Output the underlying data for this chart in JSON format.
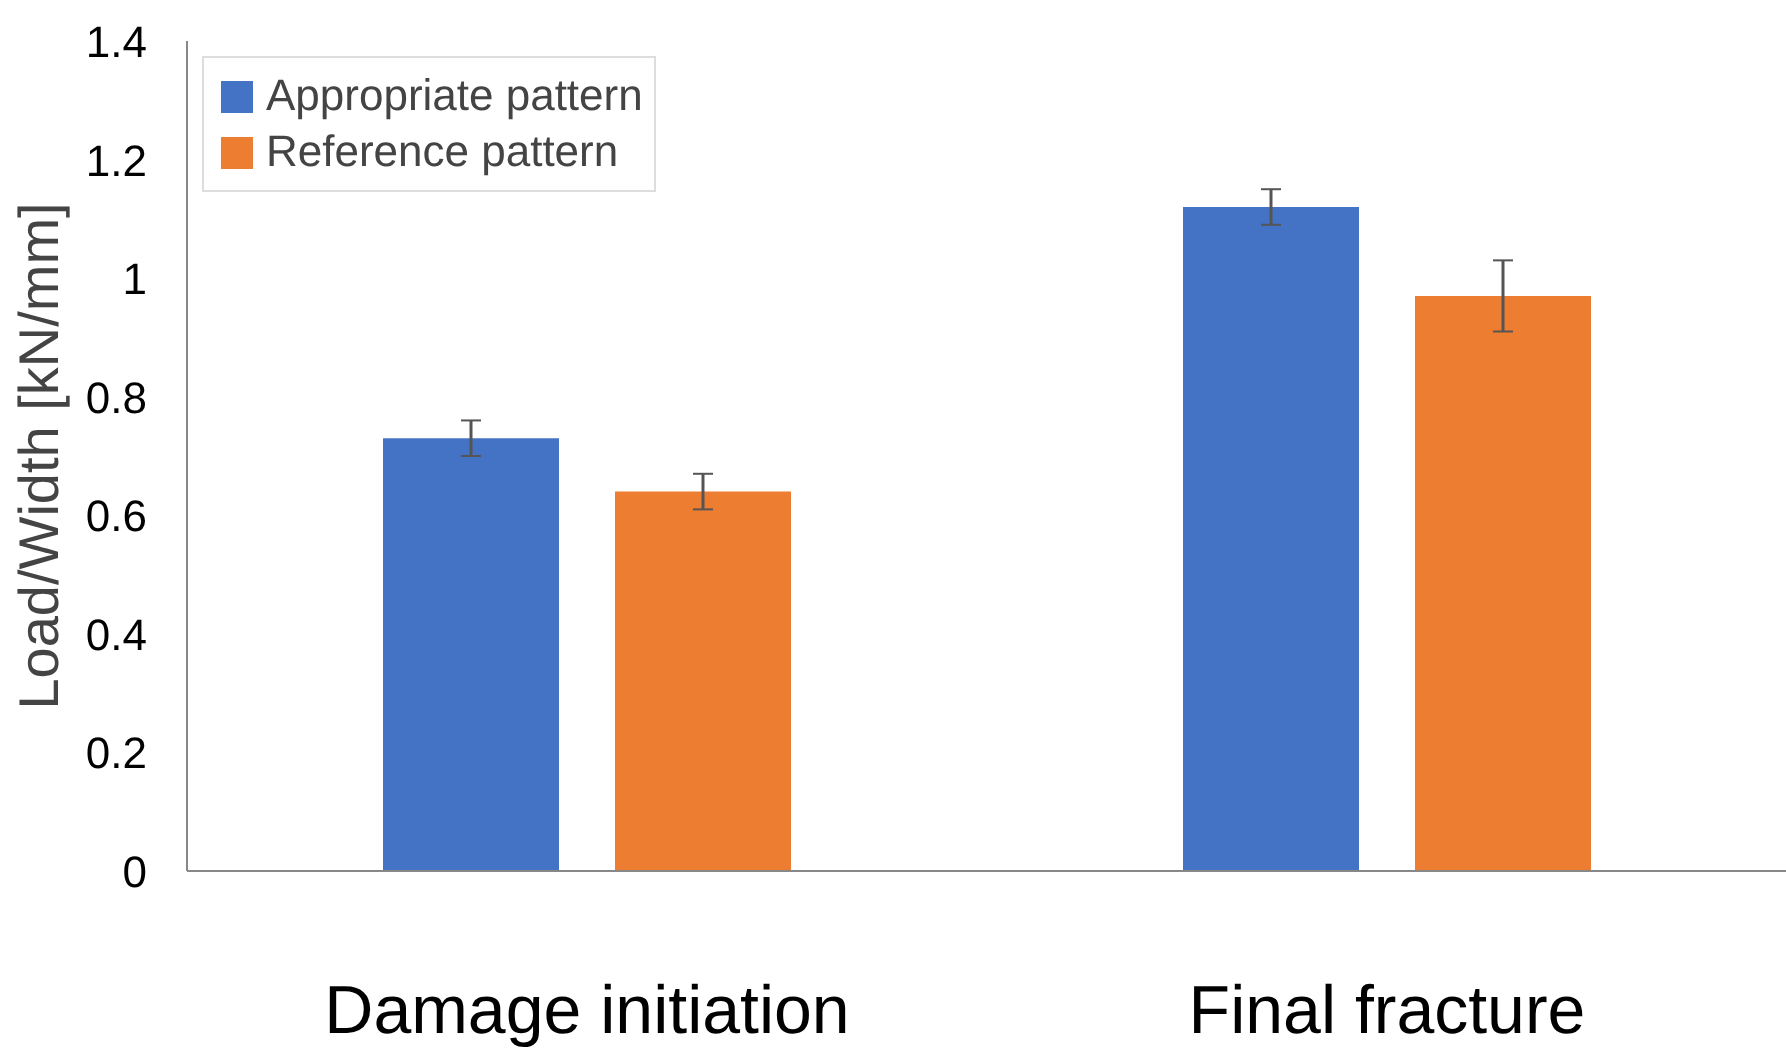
{
  "chart_data": {
    "type": "bar",
    "ylabel": "Load/Width [kN/mm]",
    "categories": [
      "Damage initiation",
      "Final fracture"
    ],
    "series": [
      {
        "name": "Appropriate pattern",
        "color": "#4472c4",
        "values": [
          0.73,
          1.12
        ],
        "errors": [
          0.03,
          0.03
        ]
      },
      {
        "name": "Reference pattern",
        "color": "#ed7d31",
        "values": [
          0.64,
          0.97
        ],
        "errors": [
          0.03,
          0.06
        ]
      }
    ],
    "ylim": [
      0,
      1.4
    ],
    "yticks": [
      0,
      0.2,
      0.4,
      0.6,
      0.8,
      1,
      1.2,
      1.4
    ],
    "grid": false,
    "legend": "top left"
  }
}
